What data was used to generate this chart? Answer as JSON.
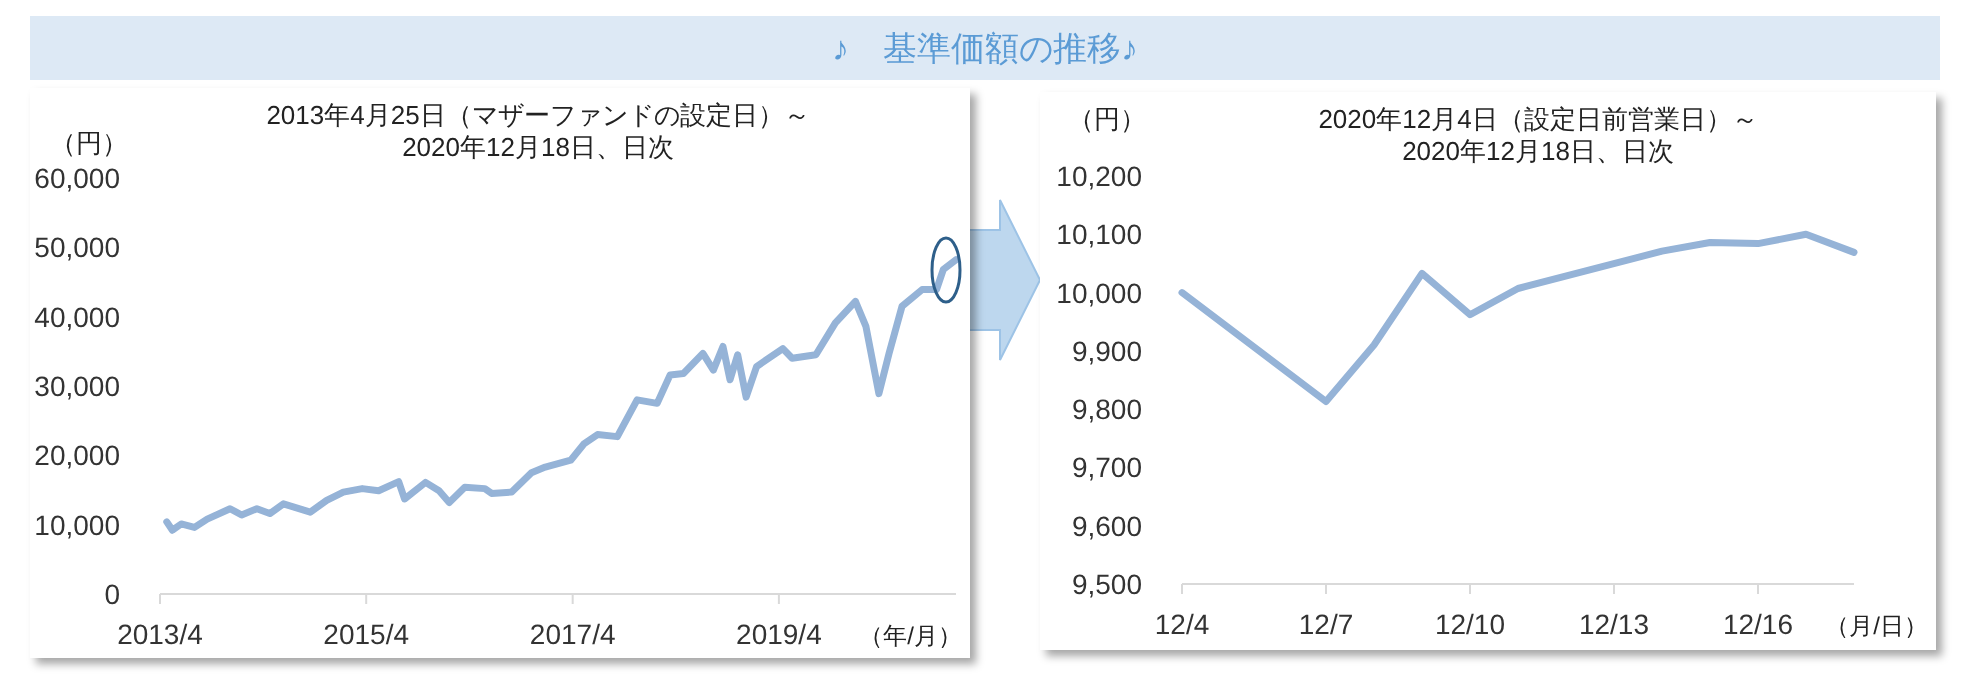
{
  "chart_data": [
    {
      "type": "other",
      "title": "♪　基準価額の推移♪"
    },
    {
      "type": "line",
      "title": "2013年4月25日（マザーファンドの設定日）～\n2020年12月18日、日次",
      "ylabel": "（円）",
      "xlabel": "（年/月）",
      "x": [
        "2013-04-25",
        "2013-05-15",
        "2013-06-15",
        "2013-08-01",
        "2013-09-15",
        "2013-12-05",
        "2014-01-15",
        "2014-03-10",
        "2014-04-25",
        "2014-06-12",
        "2014-09-15",
        "2014-11-12",
        "2015-01-10",
        "2015-03-18",
        "2015-05-15",
        "2015-07-25",
        "2015-08-15",
        "2015-10-28",
        "2015-12-15",
        "2016-01-20",
        "2016-03-15",
        "2016-05-25",
        "2016-06-18",
        "2016-08-28",
        "2016-11-06",
        "2016-12-25",
        "2017-03-25",
        "2017-05-12",
        "2017-06-28",
        "2017-09-06",
        "2017-11-15",
        "2018-01-25",
        "2018-03-12",
        "2018-04-28",
        "2018-07-06",
        "2018-08-12",
        "2018-09-15",
        "2018-10-10",
        "2018-11-06",
        "2018-12-06",
        "2019-01-12",
        "2019-04-15",
        "2019-05-18",
        "2019-08-10",
        "2019-10-18",
        "2019-12-28",
        "2020-02-03",
        "2020-03-20",
        "2020-04-25",
        "2020-06-10",
        "2020-08-20",
        "2020-10-10",
        "2020-11-03",
        "2020-12-18"
      ],
      "series": [
        {
          "color": "#95b3d7",
          "values": [
            10400,
            9200,
            10100,
            9600,
            10800,
            12300,
            11400,
            12300,
            11600,
            13000,
            11800,
            13500,
            14700,
            15200,
            14900,
            16200,
            13700,
            16100,
            14900,
            13200,
            15400,
            15200,
            14500,
            14700,
            17500,
            18300,
            19300,
            21700,
            23000,
            22700,
            28000,
            27500,
            31600,
            31800,
            34700,
            32300,
            35700,
            30900,
            34500,
            28400,
            32800,
            35400,
            34000,
            34500,
            39100,
            42200,
            38600,
            28900,
            34700,
            41500,
            43900,
            43900,
            46800,
            48200
          ]
        }
      ],
      "xlim": [
        "2013-04",
        "2020-12-18"
      ],
      "xticks": [
        {
          "value": "2013-04",
          "label": "2013/4"
        },
        {
          "value": "2015-04",
          "label": "2015/4"
        },
        {
          "value": "2017-04",
          "label": "2017/4"
        },
        {
          "value": "2019-04",
          "label": "2019/4"
        }
      ],
      "ylim": [
        0,
        60000
      ],
      "yticks": [
        0,
        {
          "value": 10000,
          "label": "10,000"
        },
        {
          "value": 20000,
          "label": "20,000"
        },
        {
          "value": 30000,
          "label": "30,000"
        },
        {
          "value": 40000,
          "label": "40,000"
        },
        {
          "value": 50000,
          "label": "50,000"
        },
        {
          "value": 60000,
          "label": "60,000"
        }
      ]
    },
    {
      "type": "line",
      "title": "2020年12月4日（設定日前営業日）～\n2020年12月18日、日次",
      "ylabel": "（円）",
      "xlabel": "（月/日）",
      "x": [
        "--12-04",
        "--12-07",
        "--12-08",
        "--12-09",
        "--12-10",
        "--12-11",
        "--12-14",
        "--12-15",
        "--12-16",
        "--12-17",
        "--12-18"
      ],
      "series": [
        {
          "color": "#95b3d7",
          "values": [
            10000,
            9813,
            9910,
            10033,
            9962,
            10007,
            10071,
            10086,
            10084,
            10100,
            10069
          ]
        }
      ],
      "xlim": [
        "--12-04",
        "--12-18"
      ],
      "xticks": [
        {
          "value": "--12-04",
          "label": "12/4"
        },
        {
          "value": "--12-07",
          "label": "12/7"
        },
        {
          "value": "--12-10",
          "label": "12/10"
        },
        {
          "value": "--12-13",
          "label": "12/13"
        },
        {
          "value": "--12-16",
          "label": "12/16"
        }
      ],
      "ylim": [
        9500,
        10200
      ],
      "yticks": [
        {
          "value": 9500,
          "label": "9,500"
        },
        {
          "value": 9600,
          "label": "9,600"
        },
        {
          "value": 9700,
          "label": "9,700"
        },
        {
          "value": 9800,
          "label": "9,800"
        },
        {
          "value": 9900,
          "label": "9,900"
        },
        {
          "value": 10000,
          "label": "10,000"
        },
        {
          "value": 10100,
          "label": "10,100"
        },
        {
          "value": 10200,
          "label": "10,200"
        }
      ]
    }
  ]
}
